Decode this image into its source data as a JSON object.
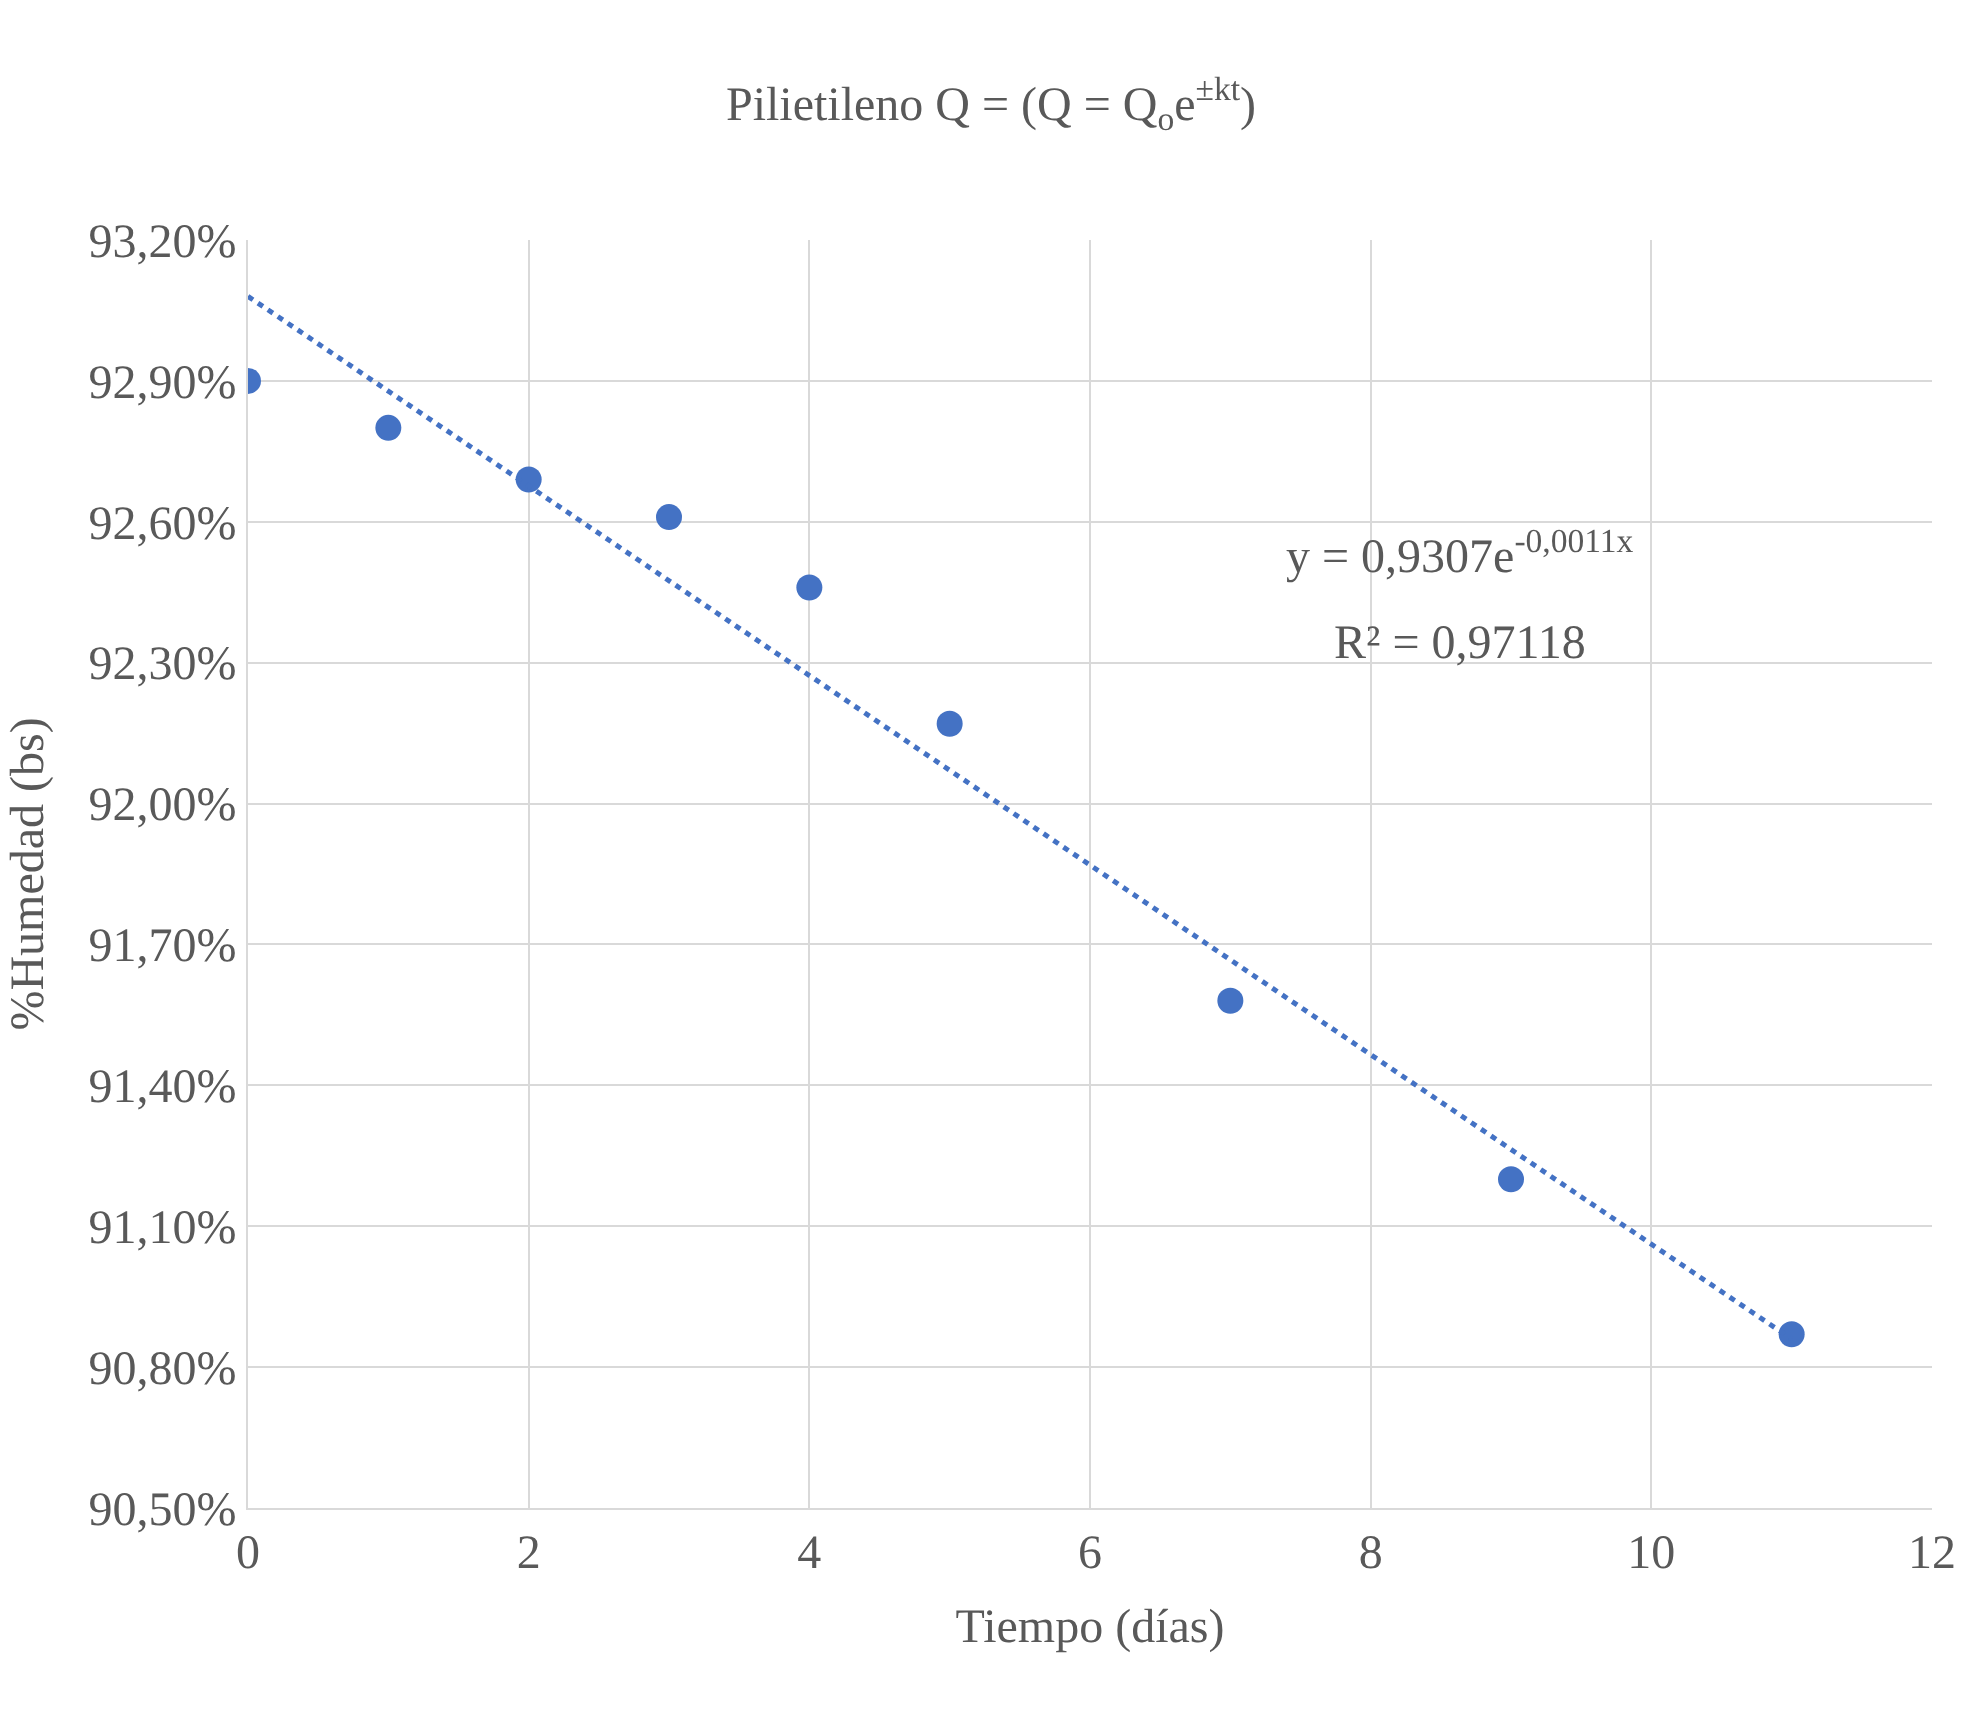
{
  "chart_data": {
    "type": "scatter",
    "title": "Pilietileno Q = (Q = Q$_{o}$e$^{±kt}$)",
    "xlabel": "Tiempo (días)",
    "ylabel": "%Humedad (bs)",
    "x": [
      0,
      1,
      2,
      3,
      4,
      5,
      7,
      9,
      11
    ],
    "series": [
      {
        "color": "#4472c4",
        "values": [
          92.9,
          92.8,
          92.69,
          92.61,
          92.46,
          92.17,
          91.58,
          91.2,
          90.87
        ],
        "marker": "circle"
      },
      {
        "type": "line",
        "color": "#4472c4",
        "x": [
          0,
          11
        ],
        "values": [
          93.08,
          90.86
        ],
        "line_style": "dotted",
        "marker": "none"
      }
    ],
    "xlim": [
      0,
      12
    ],
    "xticks": [
      0,
      2,
      4,
      6,
      8,
      10,
      12
    ],
    "ylim": [
      90.5,
      93.2
    ],
    "yticks": [
      {
        "value": 90.5,
        "label": "90,50%"
      },
      {
        "value": 90.8,
        "label": "90,80%"
      },
      {
        "value": 91.1,
        "label": "91,10%"
      },
      {
        "value": 91.4,
        "label": "91,40%"
      },
      {
        "value": 91.7,
        "label": "91,70%"
      },
      {
        "value": 92.0,
        "label": "92,00%"
      },
      {
        "value": 92.3,
        "label": "92,30%"
      },
      {
        "value": 92.6,
        "label": "92,60%"
      },
      {
        "value": 92.9,
        "label": "92,90%"
      },
      {
        "value": 93.2,
        "label": "93,20%"
      }
    ],
    "annotations": [
      "y = 0,9307e$^{-0,0011x}$",
      "R² = 0,97118"
    ],
    "grid": true
  }
}
